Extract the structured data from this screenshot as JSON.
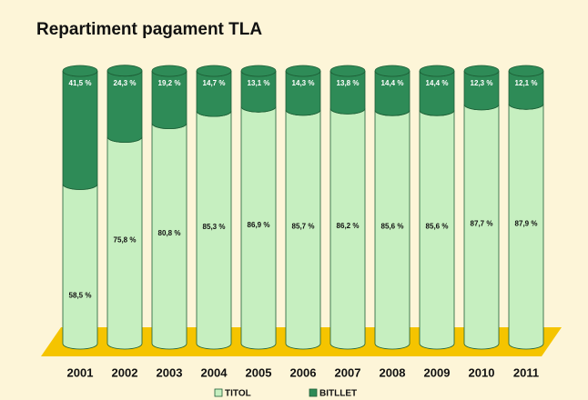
{
  "chart_data": {
    "type": "stacked_bar",
    "title": "Repartiment pagament TLA",
    "categories": [
      "2001",
      "2002",
      "2003",
      "2004",
      "2005",
      "2006",
      "2007",
      "2008",
      "2009",
      "2010",
      "2011"
    ],
    "ylim": [
      0,
      100
    ],
    "series": [
      {
        "name": "TITOL",
        "color": "#c6efc0",
        "values": [
          58.5,
          75.8,
          80.8,
          85.3,
          86.9,
          85.7,
          86.2,
          85.6,
          85.6,
          87.7,
          87.9
        ],
        "value_labels": [
          "58,5 %",
          "75,8 %",
          "80,8 %",
          "85,3 %",
          "86,9 %",
          "85,7 %",
          "86,2 %",
          "85,6 %",
          "85,6 %",
          "87,7 %",
          "87,9 %"
        ]
      },
      {
        "name": "BITLLET",
        "color": "#2e8b57",
        "values": [
          41.5,
          24.3,
          19.2,
          14.7,
          13.1,
          14.3,
          13.8,
          14.4,
          14.4,
          12.3,
          12.1
        ],
        "value_labels": [
          "41,5 %",
          "24,3 %",
          "19,2 %",
          "14,7 %",
          "13,1 %",
          "14,3 %",
          "13,8 %",
          "14,4 %",
          "14,4 %",
          "12,3 %",
          "12,1 %"
        ]
      }
    ]
  }
}
